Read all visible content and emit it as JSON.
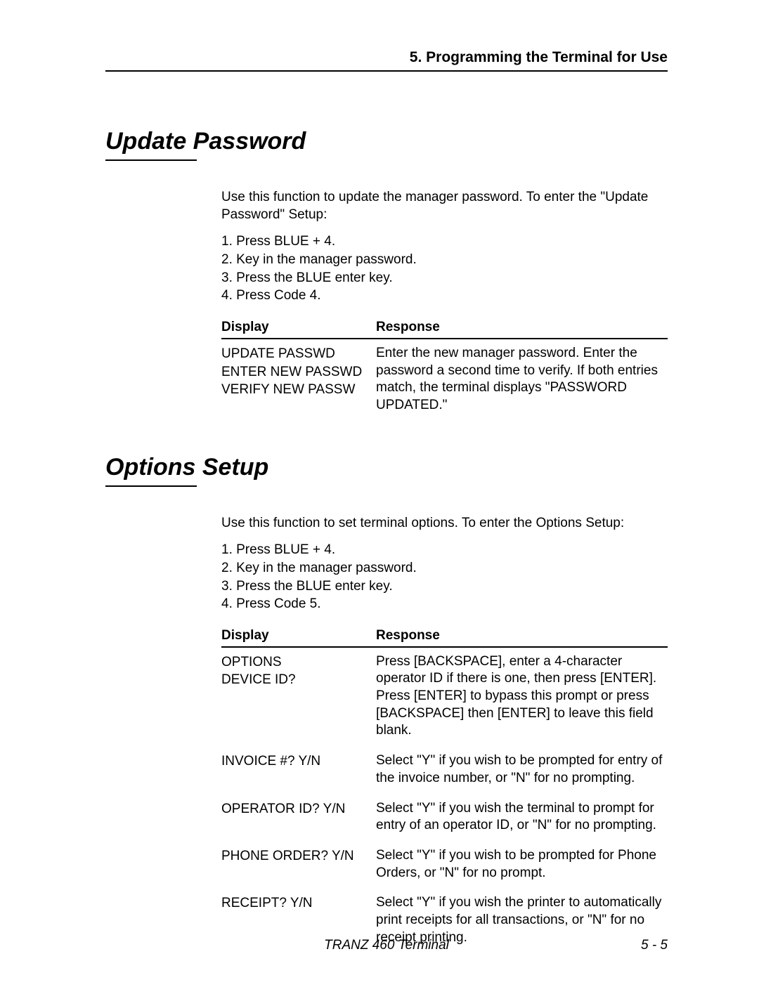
{
  "chapter_header": "5.  Programming the Terminal for Use",
  "sections": [
    {
      "title": "Update Password",
      "intro": "Use this function to update the manager password.  To enter the \"Update Password\" Setup:",
      "steps": [
        "1.  Press BLUE + 4.",
        "2.  Key in the manager password.",
        "3.  Press the BLUE enter key.",
        "4.  Press Code 4."
      ],
      "table_headers": {
        "display": "Display",
        "response": "Response"
      },
      "rows": [
        {
          "display_lines": [
            "UPDATE PASSWD",
            "ENTER NEW PASSWD",
            "VERIFY NEW PASSW"
          ],
          "response": "Enter the new manager password. Enter the password a second time to verify.\nIf both entries match, the terminal displays \"PASSWORD UPDATED.\""
        }
      ]
    },
    {
      "title": "Options Setup",
      "intro": "Use this function to set terminal options.  To enter the Options Setup:",
      "steps": [
        "1.  Press BLUE + 4.",
        "2.  Key in the manager password.",
        "3.  Press the BLUE enter key.",
        "4.  Press Code 5."
      ],
      "table_headers": {
        "display": "Display",
        "response": "Response"
      },
      "rows": [
        {
          "display_lines": [
            "OPTIONS",
            "DEVICE ID?"
          ],
          "response": "Press [BACKSPACE], enter a 4-character operator ID if there is one, then press [ENTER].  Press [ENTER] to bypass this prompt or press [BACKSPACE] then [ENTER] to leave this field blank."
        },
        {
          "display_lines": [
            "INVOICE #? Y/N"
          ],
          "response": "Select \"Y\" if you wish to be prompted for entry of the invoice number, or \"N\" for no prompting."
        },
        {
          "display_lines": [
            "OPERATOR ID? Y/N"
          ],
          "response": "Select \"Y\" if you wish the terminal to prompt for entry of an operator ID, or \"N\" for no prompting."
        },
        {
          "display_lines": [
            "PHONE ORDER? Y/N"
          ],
          "response": "Select \"Y\" if you wish to be prompted for Phone Orders, or \"N\" for no prompt."
        },
        {
          "display_lines": [
            "RECEIPT? Y/N"
          ],
          "response": "Select \"Y\" if you wish the printer to automatically print receipts for all transactions, or \"N\" for no receipt printing."
        }
      ]
    }
  ],
  "footer": {
    "center": "TRANZ 460 Terminal",
    "right": "5 - 5"
  }
}
